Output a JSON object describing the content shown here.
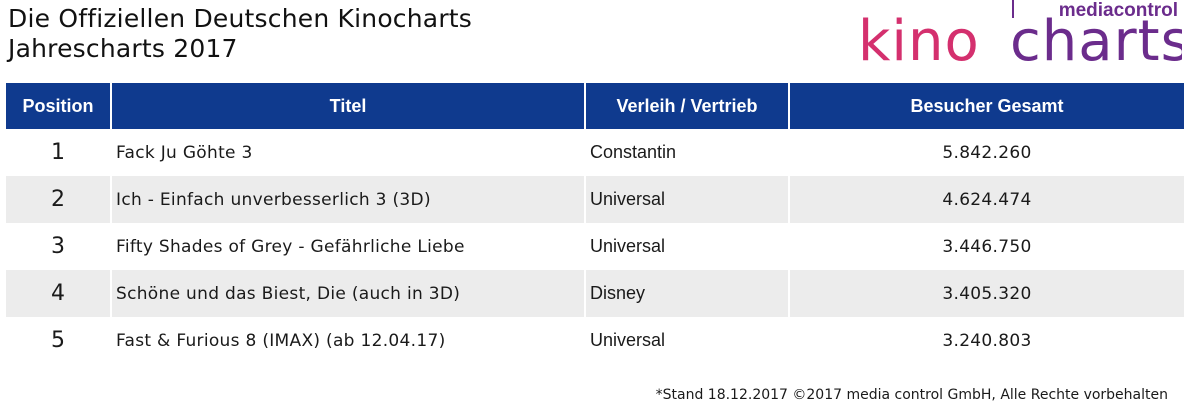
{
  "header": {
    "title_line1": "Die Offiziellen Deutschen Kinocharts",
    "title_line2": "Jahrescharts 2017"
  },
  "logo": {
    "top_text": "mediacontrol",
    "part1": "kino",
    "part2": "charts",
    "color_pink": "#d4306e",
    "color_purple": "#6b2c8c"
  },
  "table": {
    "columns": [
      "Position",
      "Titel",
      "Verleih / Vertrieb",
      "Besucher Gesamt"
    ],
    "rows": [
      {
        "position": "1",
        "title": "Fack Ju Göhte 3",
        "distributor": "Constantin",
        "visitors": "5.842.260"
      },
      {
        "position": "2",
        "title": "Ich - Einfach unverbesserlich 3 (3D)",
        "distributor": "Universal",
        "visitors": "4.624.474"
      },
      {
        "position": "3",
        "title": "Fifty Shades of Grey - Gefährliche Liebe",
        "distributor": "Universal",
        "visitors": "3.446.750"
      },
      {
        "position": "4",
        "title": "Schöne und das Biest, Die (auch in 3D)",
        "distributor": "Disney",
        "visitors": "3.405.320"
      },
      {
        "position": "5",
        "title": "Fast & Furious 8 (IMAX) (ab 12.04.17)",
        "distributor": "Universal",
        "visitors": "3.240.803"
      }
    ]
  },
  "footnote": "*Stand 18.12.2017 ©2017 media control GmbH, Alle Rechte vorbehalten",
  "colors": {
    "header_bg": "#0f3a8e",
    "row_alt_bg": "#ececec"
  }
}
